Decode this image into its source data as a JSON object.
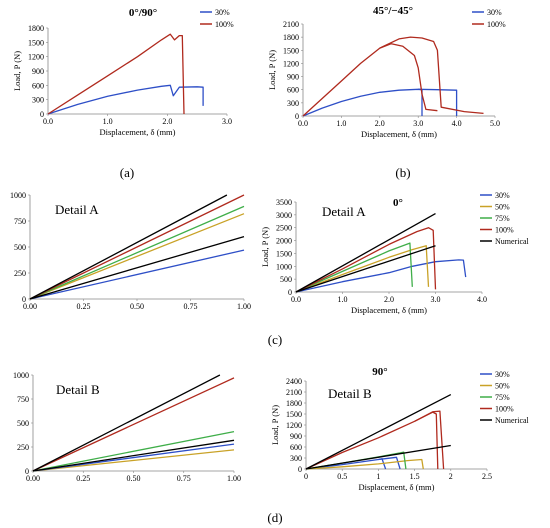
{
  "figure": {
    "panel_labels": [
      "(a)",
      "(b)",
      "(c)",
      "(d)"
    ]
  },
  "chart_data": [
    {
      "id": "a",
      "type": "line",
      "title": "0°/90°",
      "xlabel": "Displacement, δ (mm)",
      "ylabel": "Load, P (N)",
      "xlim": [
        0,
        3.0
      ],
      "ylim": [
        0,
        1800
      ],
      "xticks": [
        "0.0",
        "1.0",
        "2.0",
        "3.0"
      ],
      "yticks": [
        "0",
        "300",
        "600",
        "900",
        "1200",
        "1500",
        "1800"
      ],
      "legend": "top-right",
      "series": [
        {
          "name": "30%",
          "color": "#2e4fc7",
          "points": [
            [
              0,
              0
            ],
            [
              0.5,
              200
            ],
            [
              1.0,
              370
            ],
            [
              1.5,
              500
            ],
            [
              1.9,
              580
            ],
            [
              2.05,
              600
            ],
            [
              2.1,
              380
            ],
            [
              2.2,
              560
            ],
            [
              2.5,
              570
            ],
            [
              2.6,
              560
            ],
            [
              2.6,
              170
            ]
          ]
        },
        {
          "name": "100%",
          "color": "#b02a1e",
          "points": [
            [
              0,
              0
            ],
            [
              0.5,
              400
            ],
            [
              1.0,
              800
            ],
            [
              1.5,
              1200
            ],
            [
              1.9,
              1550
            ],
            [
              2.05,
              1670
            ],
            [
              2.12,
              1550
            ],
            [
              2.2,
              1640
            ],
            [
              2.25,
              1640
            ],
            [
              2.28,
              0
            ]
          ]
        }
      ]
    },
    {
      "id": "b",
      "type": "line",
      "title": "45°/−45°",
      "xlabel": "Displacement, δ (mm)",
      "ylabel": "Load, P (N)",
      "xlim": [
        0,
        5.0
      ],
      "ylim": [
        0,
        2100
      ],
      "xticks": [
        "0.0",
        "1.0",
        "2.0",
        "3.0",
        "4.0",
        "5.0"
      ],
      "yticks": [
        "0",
        "300",
        "600",
        "900",
        "1200",
        "1500",
        "1800",
        "2100"
      ],
      "legend": "top-right",
      "series": [
        {
          "name": "30%",
          "color": "#2e4fc7",
          "points": [
            [
              0,
              0
            ],
            [
              0.5,
              180
            ],
            [
              1.0,
              330
            ],
            [
              1.5,
              450
            ],
            [
              2.0,
              540
            ],
            [
              2.5,
              590
            ],
            [
              3.0,
              610
            ],
            [
              3.1,
              600
            ],
            [
              3.1,
              0
            ]
          ]
        },
        {
          "name": "30%",
          "color": "#2e4fc7",
          "points": [
            [
              3.0,
              610
            ],
            [
              3.5,
              600
            ],
            [
              4.0,
              590
            ],
            [
              4.0,
              0
            ]
          ]
        },
        {
          "name": "100%",
          "color": "#b02a1e",
          "points": [
            [
              0,
              0
            ],
            [
              0.5,
              400
            ],
            [
              1.0,
              800
            ],
            [
              1.5,
              1200
            ],
            [
              2.0,
              1550
            ],
            [
              2.3,
              1650
            ],
            [
              2.6,
              1590
            ],
            [
              2.9,
              1380
            ],
            [
              3.0,
              1100
            ],
            [
              3.1,
              500
            ],
            [
              3.2,
              150
            ],
            [
              3.5,
              120
            ]
          ]
        },
        {
          "name": "100%",
          "color": "#b02a1e",
          "points": [
            [
              2.0,
              1550
            ],
            [
              2.5,
              1760
            ],
            [
              2.8,
              1800
            ],
            [
              3.1,
              1780
            ],
            [
              3.4,
              1700
            ],
            [
              3.5,
              1500
            ],
            [
              3.6,
              200
            ],
            [
              4.2,
              100
            ],
            [
              4.7,
              60
            ]
          ]
        }
      ]
    },
    {
      "id": "c-detail",
      "type": "line",
      "title": "Detail A",
      "xlim": [
        0,
        1.0
      ],
      "ylim": [
        0,
        1000
      ],
      "xticks": [
        "0.00",
        "0.25",
        "0.50",
        "0.75",
        "1.00"
      ],
      "yticks": [
        "0",
        "250",
        "500",
        "750",
        "1000"
      ],
      "series": [
        {
          "color": "#2e4fc7",
          "points": [
            [
              0,
              0
            ],
            [
              1.0,
              470
            ]
          ]
        },
        {
          "color": "#c9a227",
          "points": [
            [
              0,
              0
            ],
            [
              1.0,
              820
            ]
          ]
        },
        {
          "color": "#3fae49",
          "points": [
            [
              0,
              0
            ],
            [
              1.0,
              890
            ]
          ]
        },
        {
          "color": "#b02a1e",
          "points": [
            [
              0,
              0
            ],
            [
              1.0,
              1000
            ]
          ]
        },
        {
          "color": "#000000",
          "points": [
            [
              0,
              0
            ],
            [
              0.92,
              1000
            ]
          ]
        },
        {
          "color": "#000000",
          "points": [
            [
              0,
              0
            ],
            [
              1.0,
              600
            ]
          ]
        }
      ]
    },
    {
      "id": "c",
      "type": "line",
      "title": "0°",
      "subtitle": "Detail A",
      "xlabel": "Displacement, δ (mm)",
      "ylabel": "Load, P (N)",
      "xlim": [
        0,
        4.0
      ],
      "ylim": [
        0,
        3500
      ],
      "xticks": [
        "0.0",
        "1.0",
        "2.0",
        "3.0",
        "4.0"
      ],
      "yticks": [
        "0",
        "500",
        "1000",
        "1500",
        "2000",
        "2500",
        "3000",
        "3500"
      ],
      "legend": "right",
      "series": [
        {
          "name": "30%",
          "color": "#2e4fc7",
          "points": [
            [
              0,
              0
            ],
            [
              1.0,
              400
            ],
            [
              2.0,
              750
            ],
            [
              2.5,
              1000
            ],
            [
              3.0,
              1180
            ],
            [
              3.5,
              1250
            ],
            [
              3.6,
              1240
            ],
            [
              3.65,
              580
            ]
          ]
        },
        {
          "name": "50%",
          "color": "#c9a227",
          "points": [
            [
              0,
              0
            ],
            [
              1.0,
              680
            ],
            [
              2.0,
              1350
            ],
            [
              2.5,
              1650
            ],
            [
              2.8,
              1800
            ],
            [
              2.85,
              200
            ]
          ]
        },
        {
          "name": "75%",
          "color": "#3fae49",
          "points": [
            [
              0,
              0
            ],
            [
              1.0,
              800
            ],
            [
              2.0,
              1600
            ],
            [
              2.45,
              1900
            ],
            [
              2.5,
              200
            ]
          ]
        },
        {
          "name": "100%",
          "color": "#b02a1e",
          "points": [
            [
              0,
              0
            ],
            [
              1.0,
              900
            ],
            [
              2.0,
              1850
            ],
            [
              2.6,
              2350
            ],
            [
              2.85,
              2500
            ],
            [
              2.95,
              2400
            ],
            [
              3.0,
              100
            ]
          ]
        },
        {
          "name": "Numerical",
          "color": "#000000",
          "points": [
            [
              0,
              0
            ],
            [
              3.0,
              3050
            ]
          ]
        },
        {
          "name": "Numerical",
          "color": "#000000",
          "points": [
            [
              0,
              0
            ],
            [
              3.0,
              1800
            ]
          ]
        }
      ]
    },
    {
      "id": "d-detail",
      "type": "line",
      "title": "Detail B",
      "xlim": [
        0,
        1.0
      ],
      "ylim": [
        0,
        1000
      ],
      "xticks": [
        "0.00",
        "0.25",
        "0.50",
        "0.75",
        "1.00"
      ],
      "yticks": [
        "0",
        "250",
        "500",
        "750",
        "1000"
      ],
      "series": [
        {
          "color": "#c9a227",
          "points": [
            [
              0,
              0
            ],
            [
              1.0,
              220
            ]
          ]
        },
        {
          "color": "#2e4fc7",
          "points": [
            [
              0,
              0
            ],
            [
              1.0,
              280
            ]
          ]
        },
        {
          "color": "#3fae49",
          "points": [
            [
              0,
              0
            ],
            [
              1.0,
              410
            ]
          ]
        },
        {
          "color": "#b02a1e",
          "points": [
            [
              0,
              0
            ],
            [
              1.0,
              970
            ]
          ]
        },
        {
          "color": "#000000",
          "points": [
            [
              0,
              0
            ],
            [
              0.93,
              1000
            ]
          ]
        },
        {
          "color": "#000000",
          "points": [
            [
              0,
              0
            ],
            [
              1.0,
              320
            ]
          ]
        }
      ]
    },
    {
      "id": "d",
      "type": "line",
      "title": "90°",
      "subtitle": "Detail B",
      "xlabel": "Displacement, δ (mm)",
      "ylabel": "Load, P (N)",
      "xlim": [
        0,
        2.5
      ],
      "ylim": [
        0,
        2400
      ],
      "xticks": [
        "0",
        "0.5",
        "1",
        "1.5",
        "2",
        "2.5"
      ],
      "yticks": [
        "0",
        "300",
        "600",
        "900",
        "1200",
        "1500",
        "1800",
        "2100",
        "2400"
      ],
      "legend": "right",
      "series": [
        {
          "name": "30%",
          "color": "#2e4fc7",
          "points": [
            [
              0,
              0
            ],
            [
              0.5,
              120
            ],
            [
              1.0,
              260
            ],
            [
              1.05,
              280
            ],
            [
              1.1,
              0
            ]
          ]
        },
        {
          "name": "30%",
          "color": "#2e4fc7",
          "points": [
            [
              1.0,
              260
            ],
            [
              1.25,
              320
            ],
            [
              1.3,
              0
            ]
          ]
        },
        {
          "name": "50%",
          "color": "#c9a227",
          "points": [
            [
              0,
              0
            ],
            [
              0.5,
              60
            ],
            [
              1.0,
              140
            ],
            [
              1.4,
              230
            ],
            [
              1.6,
              260
            ],
            [
              1.62,
              0
            ]
          ]
        },
        {
          "name": "75%",
          "color": "#3fae49",
          "points": [
            [
              0,
              0
            ],
            [
              0.5,
              160
            ],
            [
              1.0,
              330
            ],
            [
              1.3,
              440
            ],
            [
              1.35,
              460
            ],
            [
              1.38,
              0
            ]
          ]
        },
        {
          "name": "100%",
          "color": "#b02a1e",
          "points": [
            [
              0,
              0
            ],
            [
              0.5,
              450
            ],
            [
              1.0,
              850
            ],
            [
              1.5,
              1300
            ],
            [
              1.75,
              1550
            ],
            [
              1.8,
              1500
            ],
            [
              1.82,
              0
            ]
          ]
        },
        {
          "name": "100%",
          "color": "#b02a1e",
          "points": [
            [
              1.5,
              1300
            ],
            [
              1.75,
              1560
            ],
            [
              1.85,
              1580
            ],
            [
              1.9,
              0
            ]
          ]
        },
        {
          "name": "Numerical",
          "color": "#000000",
          "points": [
            [
              0,
              0
            ],
            [
              2.0,
              2030
            ]
          ]
        },
        {
          "name": "Numerical",
          "color": "#000000",
          "points": [
            [
              0,
              0
            ],
            [
              2.0,
              640
            ]
          ]
        }
      ]
    }
  ],
  "legends": {
    "a": [
      {
        "label": "30%",
        "color": "#2e4fc7"
      },
      {
        "label": "100%",
        "color": "#b02a1e"
      }
    ],
    "b": [
      {
        "label": "30%",
        "color": "#2e4fc7"
      },
      {
        "label": "100%",
        "color": "#b02a1e"
      }
    ],
    "c": [
      {
        "label": "30%",
        "color": "#2e4fc7"
      },
      {
        "label": "50%",
        "color": "#c9a227"
      },
      {
        "label": "75%",
        "color": "#3fae49"
      },
      {
        "label": "100%",
        "color": "#b02a1e"
      },
      {
        "label": "Numerical",
        "color": "#000000"
      }
    ],
    "d": [
      {
        "label": "30%",
        "color": "#2e4fc7"
      },
      {
        "label": "50%",
        "color": "#c9a227"
      },
      {
        "label": "75%",
        "color": "#3fae49"
      },
      {
        "label": "100%",
        "color": "#b02a1e"
      },
      {
        "label": "Numerical",
        "color": "#000000"
      }
    ]
  }
}
